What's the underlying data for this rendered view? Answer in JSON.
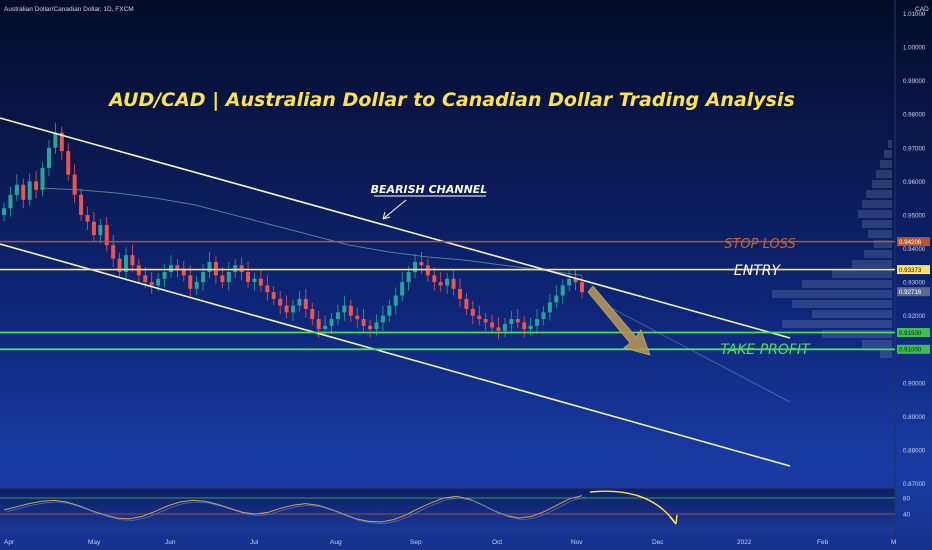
{
  "header": {
    "symbol": "Australian Dollar/Canadian Dollar, 1D, FXCM",
    "currency": "CAD"
  },
  "title": "AUD/CAD | Australian Dollar to Canadian Dollar Trading Analysis",
  "annotations": {
    "channel_label": "BEARISH CHANNEL",
    "stop_loss_label": "STOP LOSS",
    "entry_label": "ENTRY",
    "take_profit_label": "TAKE PROFIT"
  },
  "colors": {
    "background_top": "#060f2e",
    "background_bottom": "#1a3aa0",
    "bull": "#26a69a",
    "bear": "#ef5350",
    "title": "#ffe14a",
    "channel": "#f5f3c9",
    "stop_loss": "#b5552f",
    "entry": "#ffe066",
    "take_profit": "#4ce05a",
    "arrow": "#c9a45a",
    "oscillator": "#c9a25b"
  },
  "chart_data": {
    "type": "candlestick",
    "title": "AUD/CAD | Australian Dollar to Canadian Dollar Trading Analysis",
    "x_tick_labels": [
      "Apr",
      "May",
      "Jun",
      "Jul",
      "Aug",
      "Sep",
      "Oct",
      "Nov",
      "Dec",
      "2022",
      "Feb",
      "M"
    ],
    "y_tick_labels": [
      "1.01000",
      "1.00000",
      "0.99000",
      "0.98000",
      "0.97000",
      "0.96000",
      "0.95000",
      "0.94000",
      "0.93000",
      "0.92000",
      "0.91000",
      "0.90000",
      "0.89000",
      "0.88000",
      "0.87000"
    ],
    "ylim": [
      0.869,
      1.014
    ],
    "levels": {
      "stop_loss": 0.94206,
      "entry": 0.93373,
      "take_profit_1": 0.915,
      "take_profit_2": 0.91,
      "current": 0.92716
    },
    "level_labels": {
      "stop_loss": "0.94206",
      "entry": "0.93373",
      "take_profit_1": "0.91500",
      "take_profit_2": "0.91000",
      "current": "0.92716"
    },
    "closes": [
      0.952,
      0.956,
      0.959,
      0.9545,
      0.96,
      0.9575,
      0.964,
      0.97,
      0.9745,
      0.969,
      0.962,
      0.956,
      0.95,
      0.948,
      0.944,
      0.947,
      0.941,
      0.937,
      0.933,
      0.938,
      0.935,
      0.932,
      0.93,
      0.929,
      0.931,
      0.933,
      0.935,
      0.934,
      0.932,
      0.928,
      0.93,
      0.933,
      0.936,
      0.932,
      0.93,
      0.933,
      0.935,
      0.933,
      0.93,
      0.931,
      0.929,
      0.927,
      0.925,
      0.923,
      0.921,
      0.923,
      0.925,
      0.922,
      0.919,
      0.916,
      0.917,
      0.919,
      0.921,
      0.923,
      0.92,
      0.919,
      0.917,
      0.916,
      0.918,
      0.92,
      0.923,
      0.926,
      0.93,
      0.933,
      0.936,
      0.935,
      0.932,
      0.93,
      0.929,
      0.931,
      0.928,
      0.925,
      0.922,
      0.92,
      0.919,
      0.918,
      0.9165,
      0.9155,
      0.9175,
      0.919,
      0.918,
      0.916,
      0.917,
      0.919,
      0.921,
      0.924,
      0.926,
      0.929,
      0.931,
      0.93,
      0.927
    ],
    "oscillator": {
      "values": [
        50,
        58,
        66,
        72,
        74,
        70,
        60,
        48,
        38,
        30,
        28,
        34,
        46,
        60,
        70,
        74,
        72,
        64,
        54,
        44,
        40,
        44,
        54,
        62,
        66,
        62,
        52,
        40,
        28,
        22,
        20,
        26,
        38,
        54,
        68,
        80,
        84,
        78,
        64,
        48,
        36,
        30,
        34,
        46,
        62,
        78,
        86
      ],
      "levels": [
        80,
        40
      ],
      "level_labels": [
        "80",
        "40"
      ]
    },
    "sma": [
      0.958,
      0.9575,
      0.9565,
      0.955,
      0.953,
      0.95,
      0.947,
      0.944,
      0.941,
      0.939,
      0.9375,
      0.9365,
      0.935,
      0.9335,
      0.932
    ]
  }
}
